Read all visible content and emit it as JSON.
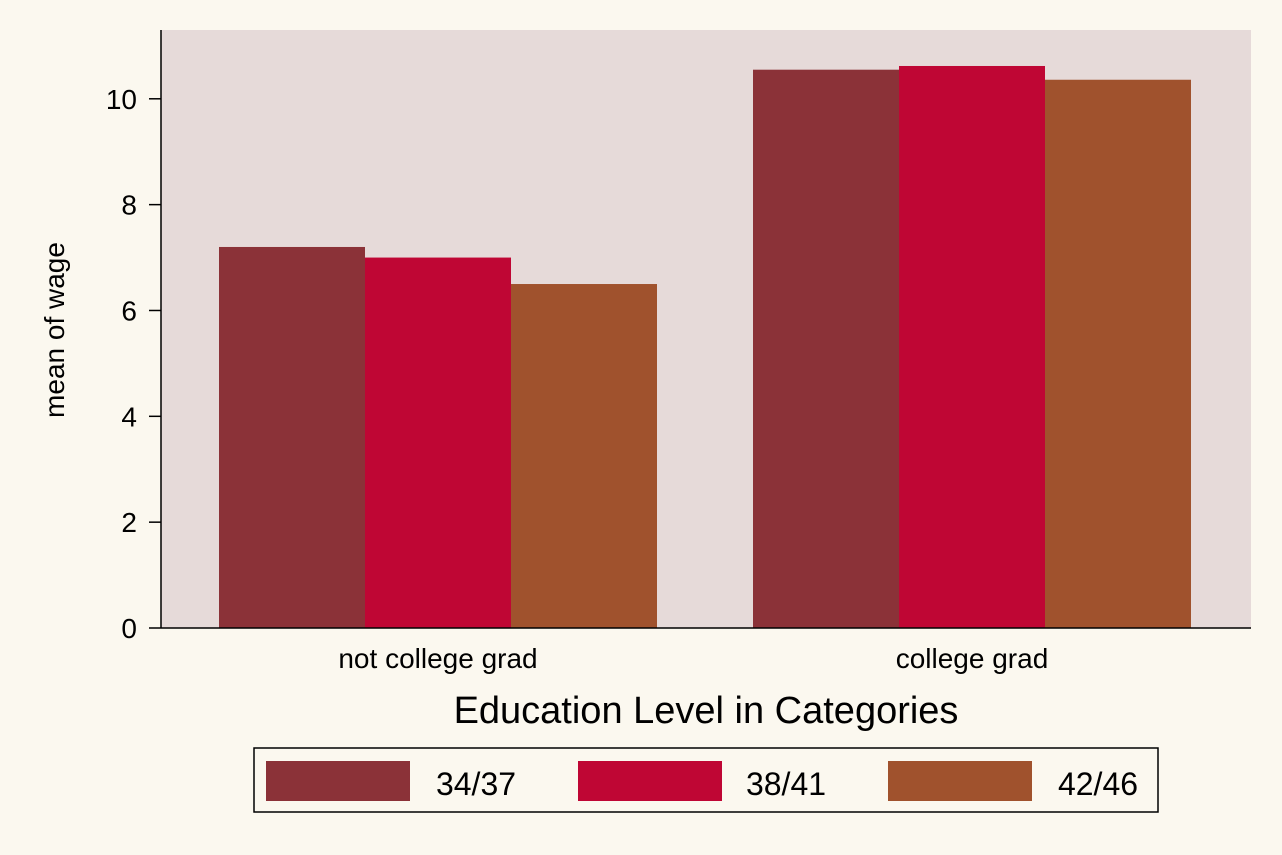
{
  "chart_data": {
    "type": "bar",
    "categories": [
      "not college grad",
      "college grad"
    ],
    "series": [
      {
        "name": "34/37",
        "values": [
          7.2,
          10.55
        ],
        "color": "#8b3238"
      },
      {
        "name": "38/41",
        "values": [
          7.0,
          10.62
        ],
        "color": "#bf0634"
      },
      {
        "name": "42/46",
        "values": [
          6.5,
          10.36
        ],
        "color": "#a0522d"
      }
    ],
    "xlabel": "Education Level in Categories",
    "ylabel": "mean of wage",
    "ylim": [
      0,
      11.3
    ],
    "yticks": [
      0,
      2,
      4,
      6,
      8,
      10
    ],
    "ytick_labels": [
      "0",
      "2",
      "4",
      "6",
      "8",
      "10"
    ],
    "grid": false,
    "legend_position": "bottom",
    "colors": {
      "page_background": "#fbf8ef",
      "plot_background": "#e6dad9",
      "axis": "#000000"
    }
  }
}
